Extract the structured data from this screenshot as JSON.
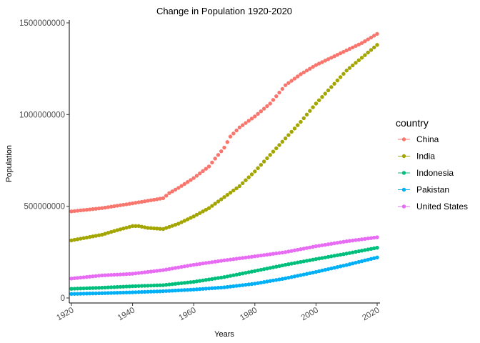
{
  "chart_data": {
    "type": "scatter",
    "title": "Change in Population 1920-2020",
    "xlabel": "Years",
    "ylabel": "Population",
    "xlim": [
      1920,
      2020
    ],
    "ylim": [
      0,
      1500000000
    ],
    "xticks": [
      1920,
      1940,
      1960,
      1980,
      2000,
      2020
    ],
    "yticks": [
      0,
      500000000,
      1000000000,
      1500000000
    ],
    "ytick_labels": [
      "0",
      "500000000",
      "1000000000",
      "1500000000"
    ],
    "grid": false,
    "legend": {
      "title": "country",
      "position": "right"
    },
    "series": [
      {
        "name": "China",
        "color": "#F8766D",
        "points": [
          [
            1920,
            472000000
          ],
          [
            1930,
            490000000
          ],
          [
            1940,
            516000000
          ],
          [
            1950,
            544000000
          ],
          [
            1952,
            572000000
          ],
          [
            1955,
            600000000
          ],
          [
            1960,
            654000000
          ],
          [
            1965,
            717000000
          ],
          [
            1967,
            760000000
          ],
          [
            1970,
            820000000
          ],
          [
            1972,
            880000000
          ],
          [
            1975,
            930000000
          ],
          [
            1980,
            990000000
          ],
          [
            1985,
            1060000000
          ],
          [
            1990,
            1160000000
          ],
          [
            1995,
            1220000000
          ],
          [
            2000,
            1270000000
          ],
          [
            2005,
            1310000000
          ],
          [
            2010,
            1350000000
          ],
          [
            2015,
            1390000000
          ],
          [
            2020,
            1440000000
          ]
        ]
      },
      {
        "name": "India",
        "color": "#A3A500",
        "points": [
          [
            1920,
            314000000
          ],
          [
            1930,
            345000000
          ],
          [
            1935,
            370000000
          ],
          [
            1940,
            392000000
          ],
          [
            1942,
            392000000
          ],
          [
            1945,
            382000000
          ],
          [
            1950,
            376000000
          ],
          [
            1955,
            405000000
          ],
          [
            1960,
            445000000
          ],
          [
            1965,
            490000000
          ],
          [
            1970,
            550000000
          ],
          [
            1975,
            610000000
          ],
          [
            1980,
            690000000
          ],
          [
            1985,
            780000000
          ],
          [
            1990,
            870000000
          ],
          [
            1995,
            960000000
          ],
          [
            2000,
            1060000000
          ],
          [
            2005,
            1150000000
          ],
          [
            2010,
            1240000000
          ],
          [
            2015,
            1310000000
          ],
          [
            2020,
            1380000000
          ]
        ]
      },
      {
        "name": "Indonesia",
        "color": "#00BF7D",
        "points": [
          [
            1920,
            50000000
          ],
          [
            1930,
            56000000
          ],
          [
            1940,
            64000000
          ],
          [
            1950,
            70000000
          ],
          [
            1960,
            88000000
          ],
          [
            1970,
            114000000
          ],
          [
            1980,
            147000000
          ],
          [
            1990,
            181000000
          ],
          [
            2000,
            212000000
          ],
          [
            2010,
            242000000
          ],
          [
            2020,
            274000000
          ]
        ]
      },
      {
        "name": "Pakistan",
        "color": "#00B0F6",
        "points": [
          [
            1920,
            22000000
          ],
          [
            1930,
            26000000
          ],
          [
            1940,
            31000000
          ],
          [
            1950,
            37000000
          ],
          [
            1960,
            46000000
          ],
          [
            1970,
            58000000
          ],
          [
            1980,
            78000000
          ],
          [
            1990,
            107000000
          ],
          [
            2000,
            142000000
          ],
          [
            2010,
            180000000
          ],
          [
            2020,
            221000000
          ]
        ]
      },
      {
        "name": "United States",
        "color": "#E76BF3",
        "points": [
          [
            1920,
            106000000
          ],
          [
            1930,
            123000000
          ],
          [
            1940,
            132000000
          ],
          [
            1950,
            152000000
          ],
          [
            1960,
            181000000
          ],
          [
            1970,
            205000000
          ],
          [
            1980,
            227000000
          ],
          [
            1990,
            250000000
          ],
          [
            2000,
            282000000
          ],
          [
            2010,
            309000000
          ],
          [
            2020,
            331000000
          ]
        ]
      }
    ]
  }
}
